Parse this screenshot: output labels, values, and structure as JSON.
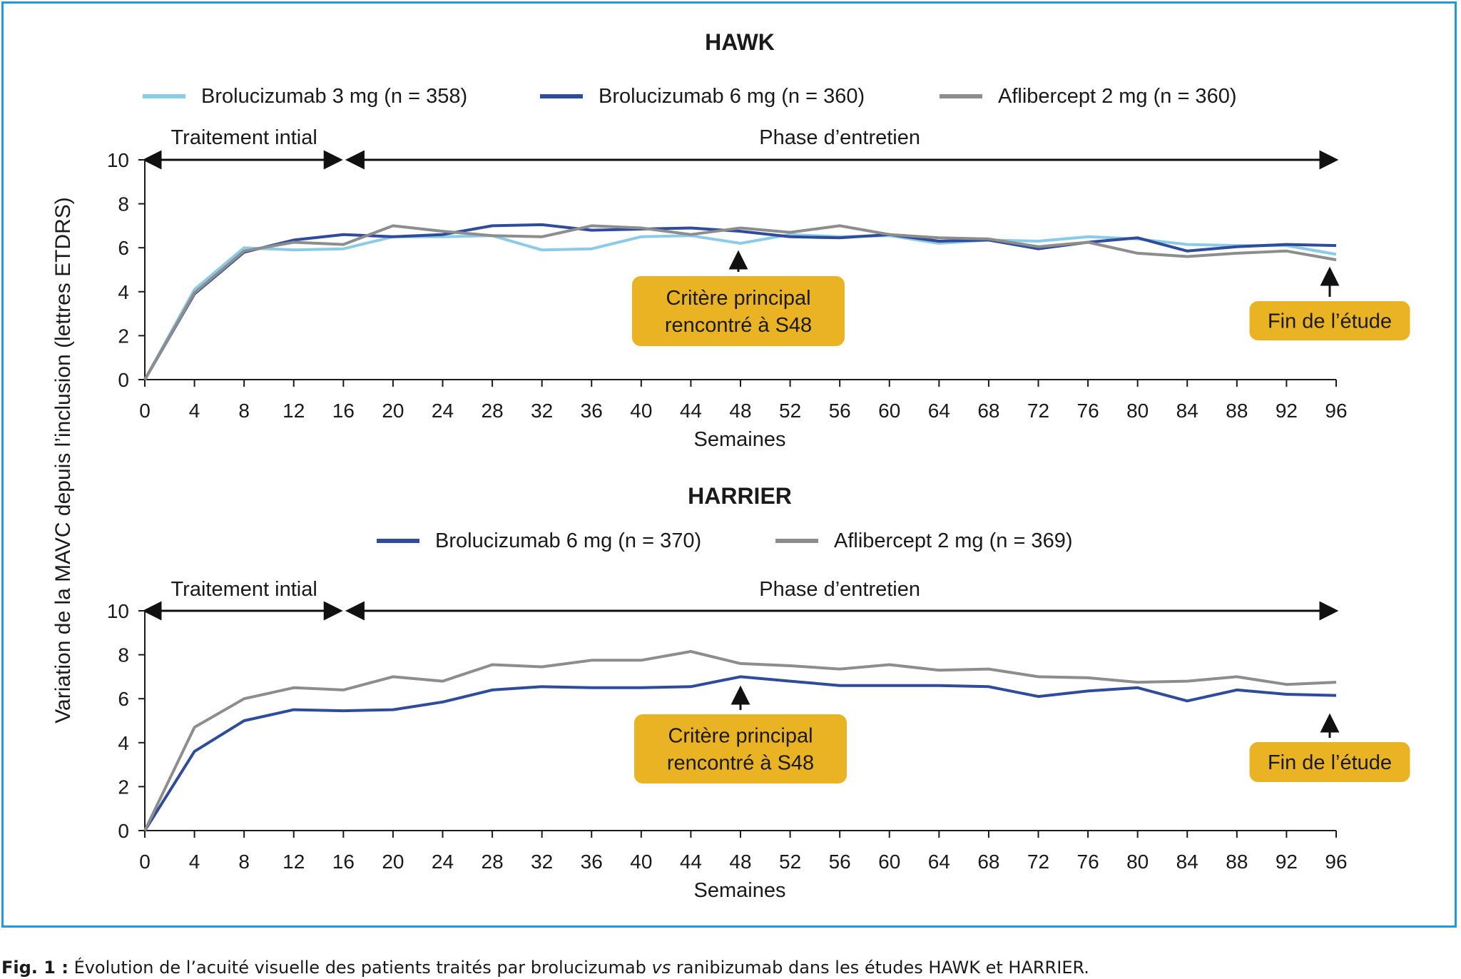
{
  "colors": {
    "border": "#1f9ad6",
    "light_blue": "#8ccbe8",
    "dark_blue": "#2f4b9b",
    "grey": "#8d8d8d",
    "callout": "#e9b323"
  },
  "caption": {
    "fig_label": "Fig. 1 :",
    "before": " Évolution de l’acuité visuelle des patients traités par brolucizumab ",
    "italic": "vs",
    "after": " ranibizumab dans les études HAWK et HARRIER."
  },
  "shared_ylabel": "Variation de la MAVC depuis l’inclusion (lettres ETDRS)",
  "chart_data": [
    {
      "type": "line",
      "title": "HAWK",
      "xlabel": "Semaines",
      "ylabel": "Variation de la MAVC depuis l’inclusion (lettres ETDRS)",
      "x": [
        0,
        4,
        8,
        12,
        16,
        20,
        24,
        28,
        32,
        36,
        40,
        44,
        48,
        52,
        56,
        60,
        64,
        68,
        72,
        76,
        80,
        84,
        88,
        92,
        96
      ],
      "xticks": [
        "0",
        "4",
        "8",
        "12",
        "16",
        "20",
        "24",
        "28",
        "32",
        "36",
        "40",
        "44",
        "48",
        "52",
        "56",
        "60",
        "64",
        "68",
        "72",
        "76",
        "80",
        "84",
        "88",
        "92",
        "96"
      ],
      "yticks": [
        "0",
        "2",
        "4",
        "6",
        "8",
        "10"
      ],
      "xlim": [
        0,
        96
      ],
      "ylim": [
        0,
        10
      ],
      "legend_position": "top",
      "series": [
        {
          "name": "Brolucizumab 3 mg (n = 358)",
          "color": "#8ccbe8",
          "values": [
            0,
            4.1,
            6.0,
            5.9,
            5.95,
            6.5,
            6.5,
            6.55,
            5.9,
            5.95,
            6.5,
            6.55,
            6.2,
            6.6,
            6.5,
            6.55,
            6.2,
            6.35,
            6.3,
            6.5,
            6.4,
            6.15,
            6.1,
            6.1,
            5.7
          ]
        },
        {
          "name": "Brolucizumab 6 mg (n = 360)",
          "color": "#2f4b9b",
          "values": [
            0,
            3.9,
            5.8,
            6.35,
            6.6,
            6.5,
            6.6,
            7.0,
            7.05,
            6.8,
            6.85,
            6.9,
            6.75,
            6.5,
            6.45,
            6.6,
            6.3,
            6.35,
            5.95,
            6.25,
            6.45,
            5.85,
            6.05,
            6.15,
            6.1
          ]
        },
        {
          "name": "Aflibercept 2 mg (n = 360)",
          "color": "#8d8d8d",
          "values": [
            0,
            3.95,
            5.85,
            6.25,
            6.15,
            7.0,
            6.75,
            6.55,
            6.5,
            7.0,
            6.9,
            6.6,
            6.9,
            6.7,
            7.0,
            6.6,
            6.45,
            6.4,
            6.05,
            6.25,
            5.75,
            5.6,
            5.75,
            5.85,
            5.45
          ]
        }
      ],
      "phases": [
        {
          "label": "Traitement intial",
          "x_start": 0,
          "x_end": 16
        },
        {
          "label": "Phase d’entretien",
          "x_start": 16,
          "x_end": 96
        }
      ],
      "annotations": [
        {
          "lines": [
            "Critère principal",
            "rencontré à S48"
          ],
          "x": 48
        },
        {
          "lines": [
            "Fin de l’étude"
          ],
          "x": 96
        }
      ]
    },
    {
      "type": "line",
      "title": "HARRIER",
      "xlabel": "Semaines",
      "ylabel": "Variation de la MAVC depuis l’inclusion (lettres ETDRS)",
      "x": [
        0,
        4,
        8,
        12,
        16,
        20,
        24,
        28,
        32,
        36,
        40,
        44,
        48,
        52,
        56,
        60,
        64,
        68,
        72,
        76,
        80,
        84,
        88,
        92,
        96
      ],
      "xticks": [
        "0",
        "4",
        "8",
        "12",
        "16",
        "20",
        "24",
        "28",
        "32",
        "36",
        "40",
        "44",
        "48",
        "52",
        "56",
        "60",
        "64",
        "68",
        "72",
        "76",
        "80",
        "84",
        "88",
        "92",
        "96"
      ],
      "yticks": [
        "0",
        "2",
        "4",
        "6",
        "8",
        "10"
      ],
      "xlim": [
        0,
        96
      ],
      "ylim": [
        0,
        10
      ],
      "legend_position": "top",
      "series": [
        {
          "name": "Brolucizumab 6 mg (n = 370)",
          "color": "#2f4b9b",
          "values": [
            0,
            3.6,
            5.0,
            5.5,
            5.45,
            5.5,
            5.85,
            6.4,
            6.55,
            6.5,
            6.5,
            6.55,
            7.0,
            6.8,
            6.6,
            6.6,
            6.6,
            6.55,
            6.1,
            6.35,
            6.5,
            5.9,
            6.4,
            6.2,
            6.15
          ]
        },
        {
          "name": "Aflibercept 2 mg (n = 369)",
          "color": "#8d8d8d",
          "values": [
            0,
            4.7,
            6.0,
            6.5,
            6.4,
            7.0,
            6.8,
            7.55,
            7.45,
            7.75,
            7.75,
            8.15,
            7.6,
            7.5,
            7.35,
            7.55,
            7.3,
            7.35,
            7.0,
            6.95,
            6.75,
            6.8,
            7.0,
            6.65,
            6.75
          ]
        }
      ],
      "phases": [
        {
          "label": "Traitement intial",
          "x_start": 0,
          "x_end": 16
        },
        {
          "label": "Phase d’entretien",
          "x_start": 16,
          "x_end": 96
        }
      ],
      "annotations": [
        {
          "lines": [
            "Critère principal",
            "rencontré à S48"
          ],
          "x": 48
        },
        {
          "lines": [
            "Fin de l’étude"
          ],
          "x": 96
        }
      ]
    }
  ]
}
